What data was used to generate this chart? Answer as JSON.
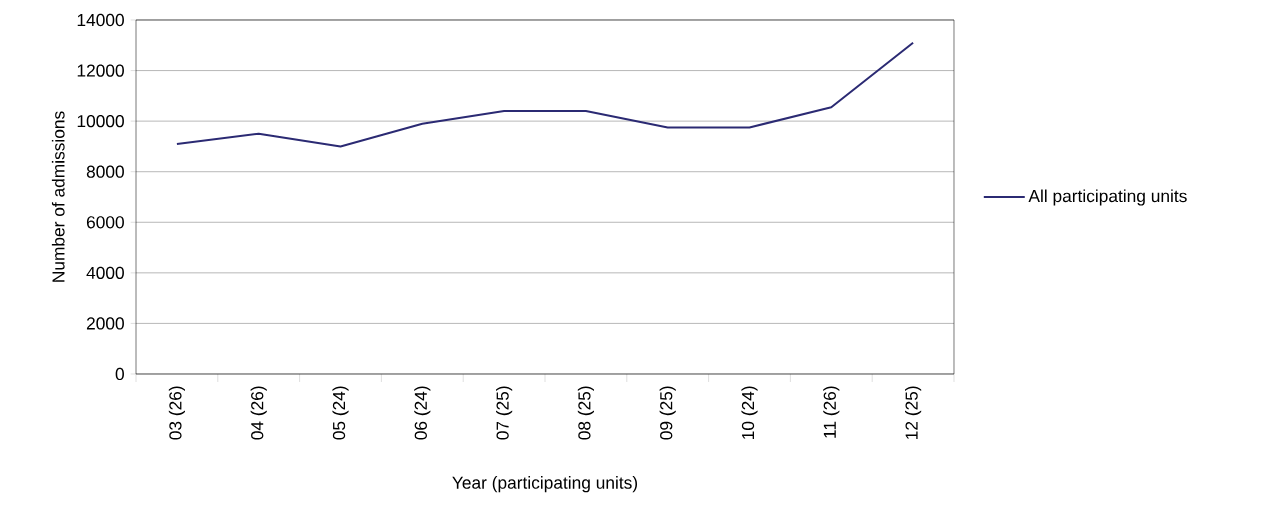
{
  "chart_data": {
    "type": "line",
    "xlabel": "Year (participating units)",
    "ylabel": "Number of admissions",
    "categories": [
      "03 (26)",
      "04 (26)",
      "05 (24)",
      "06 (24)",
      "07 (25)",
      "08 (25)",
      "09 (25)",
      "10 (24)",
      "11 (26)",
      "12 (25)"
    ],
    "series": [
      {
        "name": "All participating units",
        "color": "#2b2a73",
        "values": [
          9100,
          9500,
          9000,
          9900,
          10400,
          10400,
          9750,
          9750,
          10550,
          13100
        ]
      }
    ],
    "ylim": [
      0,
      14000
    ],
    "yticks": [
      0,
      2000,
      4000,
      6000,
      8000,
      10000,
      12000,
      14000
    ],
    "grid": "y",
    "legend": "right",
    "marker": "none",
    "line_style": "solid"
  }
}
